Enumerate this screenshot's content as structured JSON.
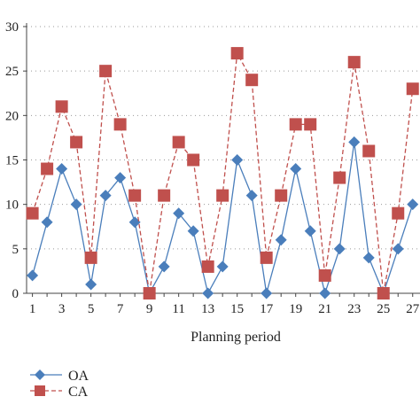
{
  "chart_data": {
    "type": "line",
    "xlabel": "Planning period",
    "ylabel": "",
    "title": "",
    "ylim": [
      0,
      30
    ],
    "yticks": [
      0,
      5,
      10,
      15,
      20,
      25,
      30
    ],
    "xlim": [
      0.6,
      27.5
    ],
    "xticks": [
      1,
      3,
      5,
      7,
      9,
      11,
      13,
      15,
      17,
      19,
      21,
      23,
      25,
      27
    ],
    "x": [
      1,
      2,
      3,
      4,
      5,
      6,
      7,
      8,
      9,
      10,
      11,
      12,
      13,
      14,
      15,
      16,
      17,
      18,
      19,
      20,
      21,
      22,
      23,
      24,
      25,
      26,
      27
    ],
    "grid": "horizontal dotted",
    "legend_position": "bottom-left",
    "series": [
      {
        "name": "OA",
        "color": "#4a7ebb",
        "line_style": "solid",
        "marker": "diamond",
        "values": [
          2,
          8,
          14,
          10,
          1,
          11,
          13,
          8,
          0,
          3,
          9,
          7,
          0,
          3,
          15,
          11,
          0,
          6,
          14,
          7,
          0,
          5,
          17,
          4,
          0,
          5,
          10
        ]
      },
      {
        "name": "CA",
        "color": "#c0504d",
        "line_style": "dashed",
        "marker": "square",
        "values": [
          9,
          14,
          21,
          17,
          4,
          25,
          19,
          11,
          0,
          11,
          17,
          15,
          3,
          11,
          27,
          24,
          4,
          11,
          19,
          19,
          2,
          13,
          26,
          16,
          0,
          9,
          23
        ]
      }
    ]
  }
}
